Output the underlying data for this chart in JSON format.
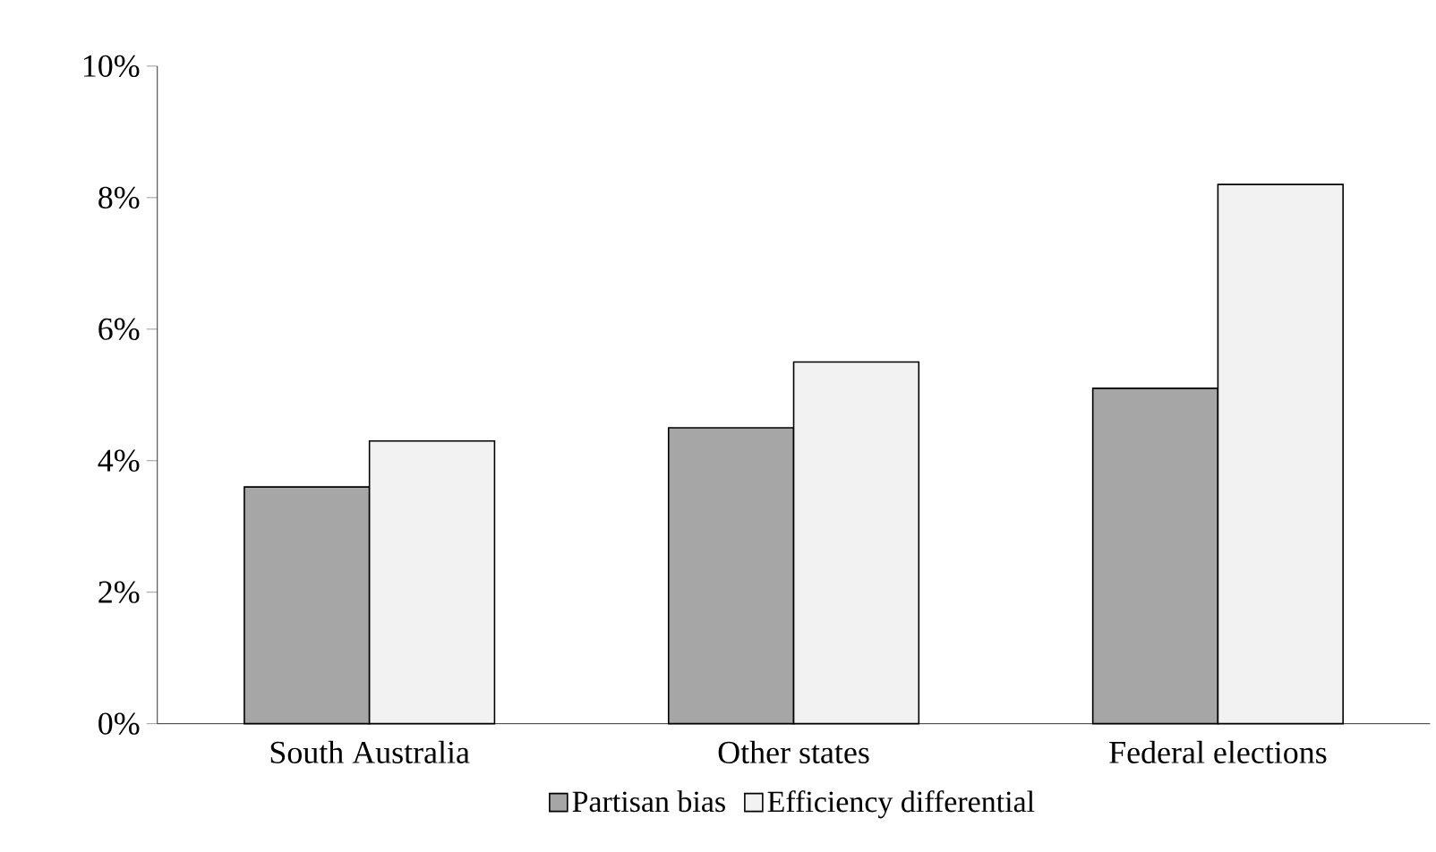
{
  "chart_data": {
    "type": "bar",
    "categories": [
      "South Australia",
      "Other states",
      "Federal elections"
    ],
    "series": [
      {
        "name": "Partisan bias",
        "color": "#a6a6a6",
        "values": [
          3.6,
          4.5,
          5.1
        ]
      },
      {
        "name": "Efficiency differential",
        "color": "#f2f2f2",
        "values": [
          4.3,
          5.5,
          8.2
        ]
      }
    ],
    "ylim": [
      0,
      10
    ],
    "yticks": [
      {
        "value": 0,
        "label": "0%"
      },
      {
        "value": 2,
        "label": "2%"
      },
      {
        "value": 4,
        "label": "4%"
      },
      {
        "value": 6,
        "label": "6%"
      },
      {
        "value": 8,
        "label": "8%"
      },
      {
        "value": 10,
        "label": "10%"
      }
    ],
    "grid": false,
    "legend": "bottom"
  }
}
